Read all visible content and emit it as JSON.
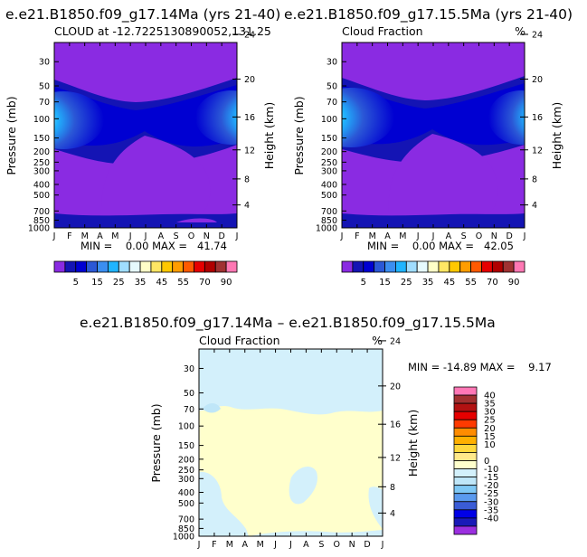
{
  "colors": {
    "background": "#ffffff",
    "frame": "#000000",
    "ncl_palette": [
      "#8a2be2",
      "#1414b4",
      "#0000d2",
      "#2b58d6",
      "#3b8ef0",
      "#20b4ff",
      "#a0ddff",
      "#e6fafe",
      "#ffffc8",
      "#ffe664",
      "#ffc800",
      "#ff9d00",
      "#ff5a00",
      "#e60000",
      "#b00000",
      "#a03232",
      "#ff78b4"
    ],
    "diff_palette": [
      "#9b2fe0",
      "#1a1ab8",
      "#0000e6",
      "#3a5cd6",
      "#5a9aee",
      "#7fc8f5",
      "#bfe6f8",
      "#d3f0fb",
      "#ffffcc",
      "#ffe98a",
      "#ffd83d",
      "#ffb000",
      "#ff8c00",
      "#ff3a00",
      "#e60000",
      "#b21212",
      "#a23030",
      "#ff77b6"
    ]
  },
  "panels": [
    {
      "title": "e.e21.B1850.f09_g17.14Ma (yrs 21-40)",
      "subtitle_left": "CLOUD at -12.7225130890052,131.25",
      "subtitle_right": "",
      "stats": "MIN =    0.00 MAX =   41.74"
    },
    {
      "title": "e.e21.B1850.f09_g17.15.5Ma (yrs 21-40)",
      "subtitle_left": "Cloud Fraction",
      "subtitle_right": "%",
      "stats": "MIN =    0.00 MAX =   42.05"
    },
    {
      "title": "e.e21.B1850.f09_g17.14Ma – e.e21.B1850.f09_g17.15.5Ma",
      "subtitle_left": "Cloud Fraction",
      "subtitle_right": "%",
      "stats": "MIN = -14.89 MAX =    9.17"
    }
  ],
  "chart_data": [
    {
      "type": "heatmap",
      "title": "e.e21.B1850.f09_g17.14Ma (yrs 21-40)",
      "variable": "CLOUD at -12.7225130890052,131.25",
      "xlabel": "",
      "ylabel": "Pressure (mb)",
      "y2label": "Height (km)",
      "x_ticks": [
        "J",
        "F",
        "M",
        "A",
        "M",
        "J",
        "J",
        "A",
        "S",
        "O",
        "N",
        "D",
        "J"
      ],
      "y_ticks": [
        30,
        50,
        70,
        100,
        150,
        200,
        250,
        300,
        400,
        500,
        700,
        850,
        1000
      ],
      "y2_ticks": [
        24,
        20,
        16,
        12,
        8,
        4
      ],
      "ylim": [
        1000,
        20
      ],
      "min": 0.0,
      "max": 41.74,
      "colorbar_labels": [
        5,
        15,
        25,
        35,
        45,
        55,
        70,
        90
      ]
    },
    {
      "type": "heatmap",
      "title": "e.e21.B1850.f09_g17.15.5Ma (yrs 21-40)",
      "variable": "Cloud Fraction",
      "units": "%",
      "xlabel": "",
      "ylabel": "Pressure (mb)",
      "y2label": "Height (km)",
      "x_ticks": [
        "J",
        "F",
        "M",
        "A",
        "M",
        "J",
        "J",
        "A",
        "S",
        "O",
        "N",
        "D",
        "J"
      ],
      "y_ticks": [
        30,
        50,
        70,
        100,
        150,
        200,
        250,
        300,
        400,
        500,
        700,
        850,
        1000
      ],
      "y2_ticks": [
        24,
        20,
        16,
        12,
        8,
        4
      ],
      "ylim": [
        1000,
        20
      ],
      "min": 0.0,
      "max": 42.05,
      "colorbar_labels": [
        5,
        15,
        25,
        35,
        45,
        55,
        70,
        90
      ]
    },
    {
      "type": "heatmap",
      "title": "e.e21.B1850.f09_g17.14Ma – e.e21.B1850.f09_g17.15.5Ma",
      "variable": "Cloud Fraction",
      "units": "%",
      "xlabel": "",
      "ylabel": "Pressure (mb)",
      "y2label": "Height (km)",
      "x_ticks": [
        "J",
        "F",
        "M",
        "A",
        "M",
        "J",
        "J",
        "A",
        "S",
        "O",
        "N",
        "D",
        "J"
      ],
      "y_ticks": [
        30,
        50,
        70,
        100,
        150,
        200,
        250,
        300,
        400,
        500,
        700,
        850,
        1000
      ],
      "y2_ticks": [
        24,
        20,
        16,
        12,
        8,
        4
      ],
      "ylim": [
        1000,
        20
      ],
      "min": -14.89,
      "max": 9.17,
      "colorbar_labels": [
        40,
        35,
        30,
        25,
        20,
        15,
        10,
        0,
        -10,
        -15,
        -20,
        -25,
        -30,
        -35,
        -40
      ]
    }
  ]
}
